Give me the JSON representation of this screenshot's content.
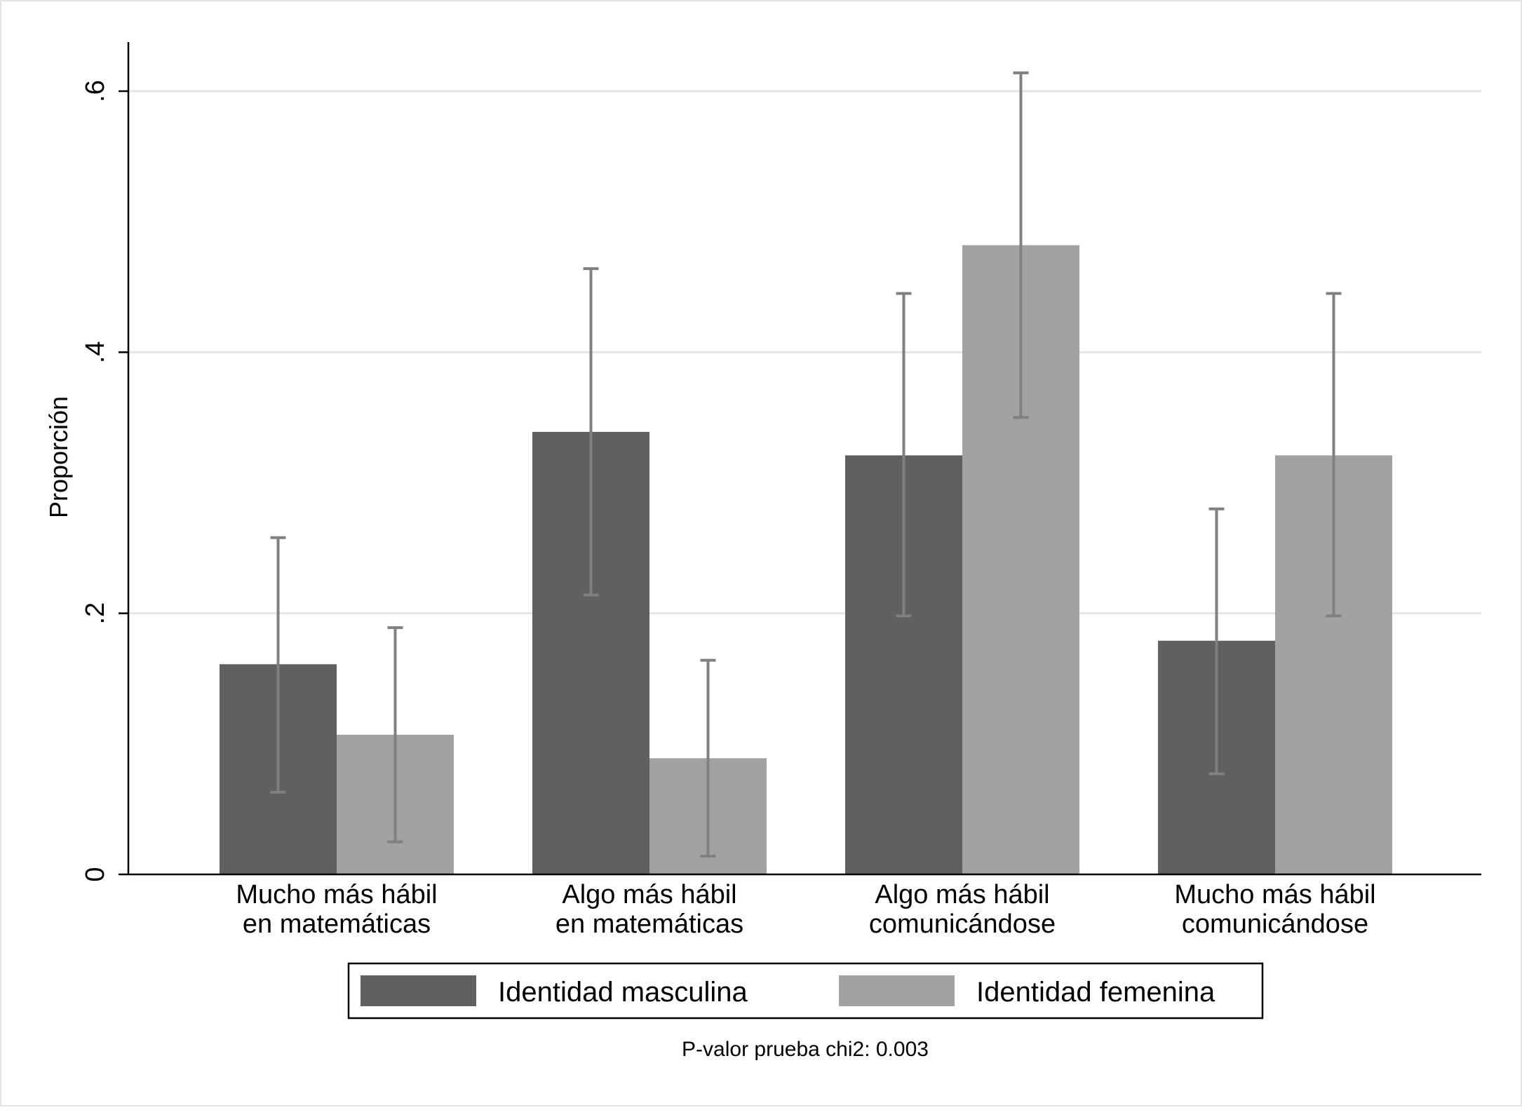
{
  "chart_data": {
    "type": "bar",
    "title": "",
    "xlabel": "",
    "ylabel": "Proporción",
    "ylim": [
      0,
      0.64
    ],
    "yticks": [
      0,
      0.2,
      0.4,
      0.6
    ],
    "ytick_labels": [
      "0",
      ".2",
      ".4",
      ".6"
    ],
    "grid": true,
    "legend_position": "bottom",
    "categories": [
      [
        "Mucho más hábil",
        "en matemáticas"
      ],
      [
        "Algo más hábil",
        "en matemáticas"
      ],
      [
        "Algo más hábil",
        "comunicándose"
      ],
      [
        "Mucho más hábil",
        "comunicándose"
      ]
    ],
    "series": [
      {
        "name": "Identidad masculina",
        "color": "#606060",
        "values": [
          0.161,
          0.339,
          0.321,
          0.179
        ],
        "ci_low": [
          0.063,
          0.214,
          0.198,
          0.077
        ],
        "ci_high": [
          0.258,
          0.464,
          0.445,
          0.28
        ]
      },
      {
        "name": "Identidad femenina",
        "color": "#a2a2a2",
        "values": [
          0.107,
          0.089,
          0.482,
          0.321
        ],
        "ci_low": [
          0.025,
          0.014,
          0.35,
          0.198
        ],
        "ci_high": [
          0.189,
          0.164,
          0.614,
          0.445
        ]
      }
    ],
    "errorbar_color": "#808080",
    "note": "P-valor prueba chi2: 0.003"
  }
}
